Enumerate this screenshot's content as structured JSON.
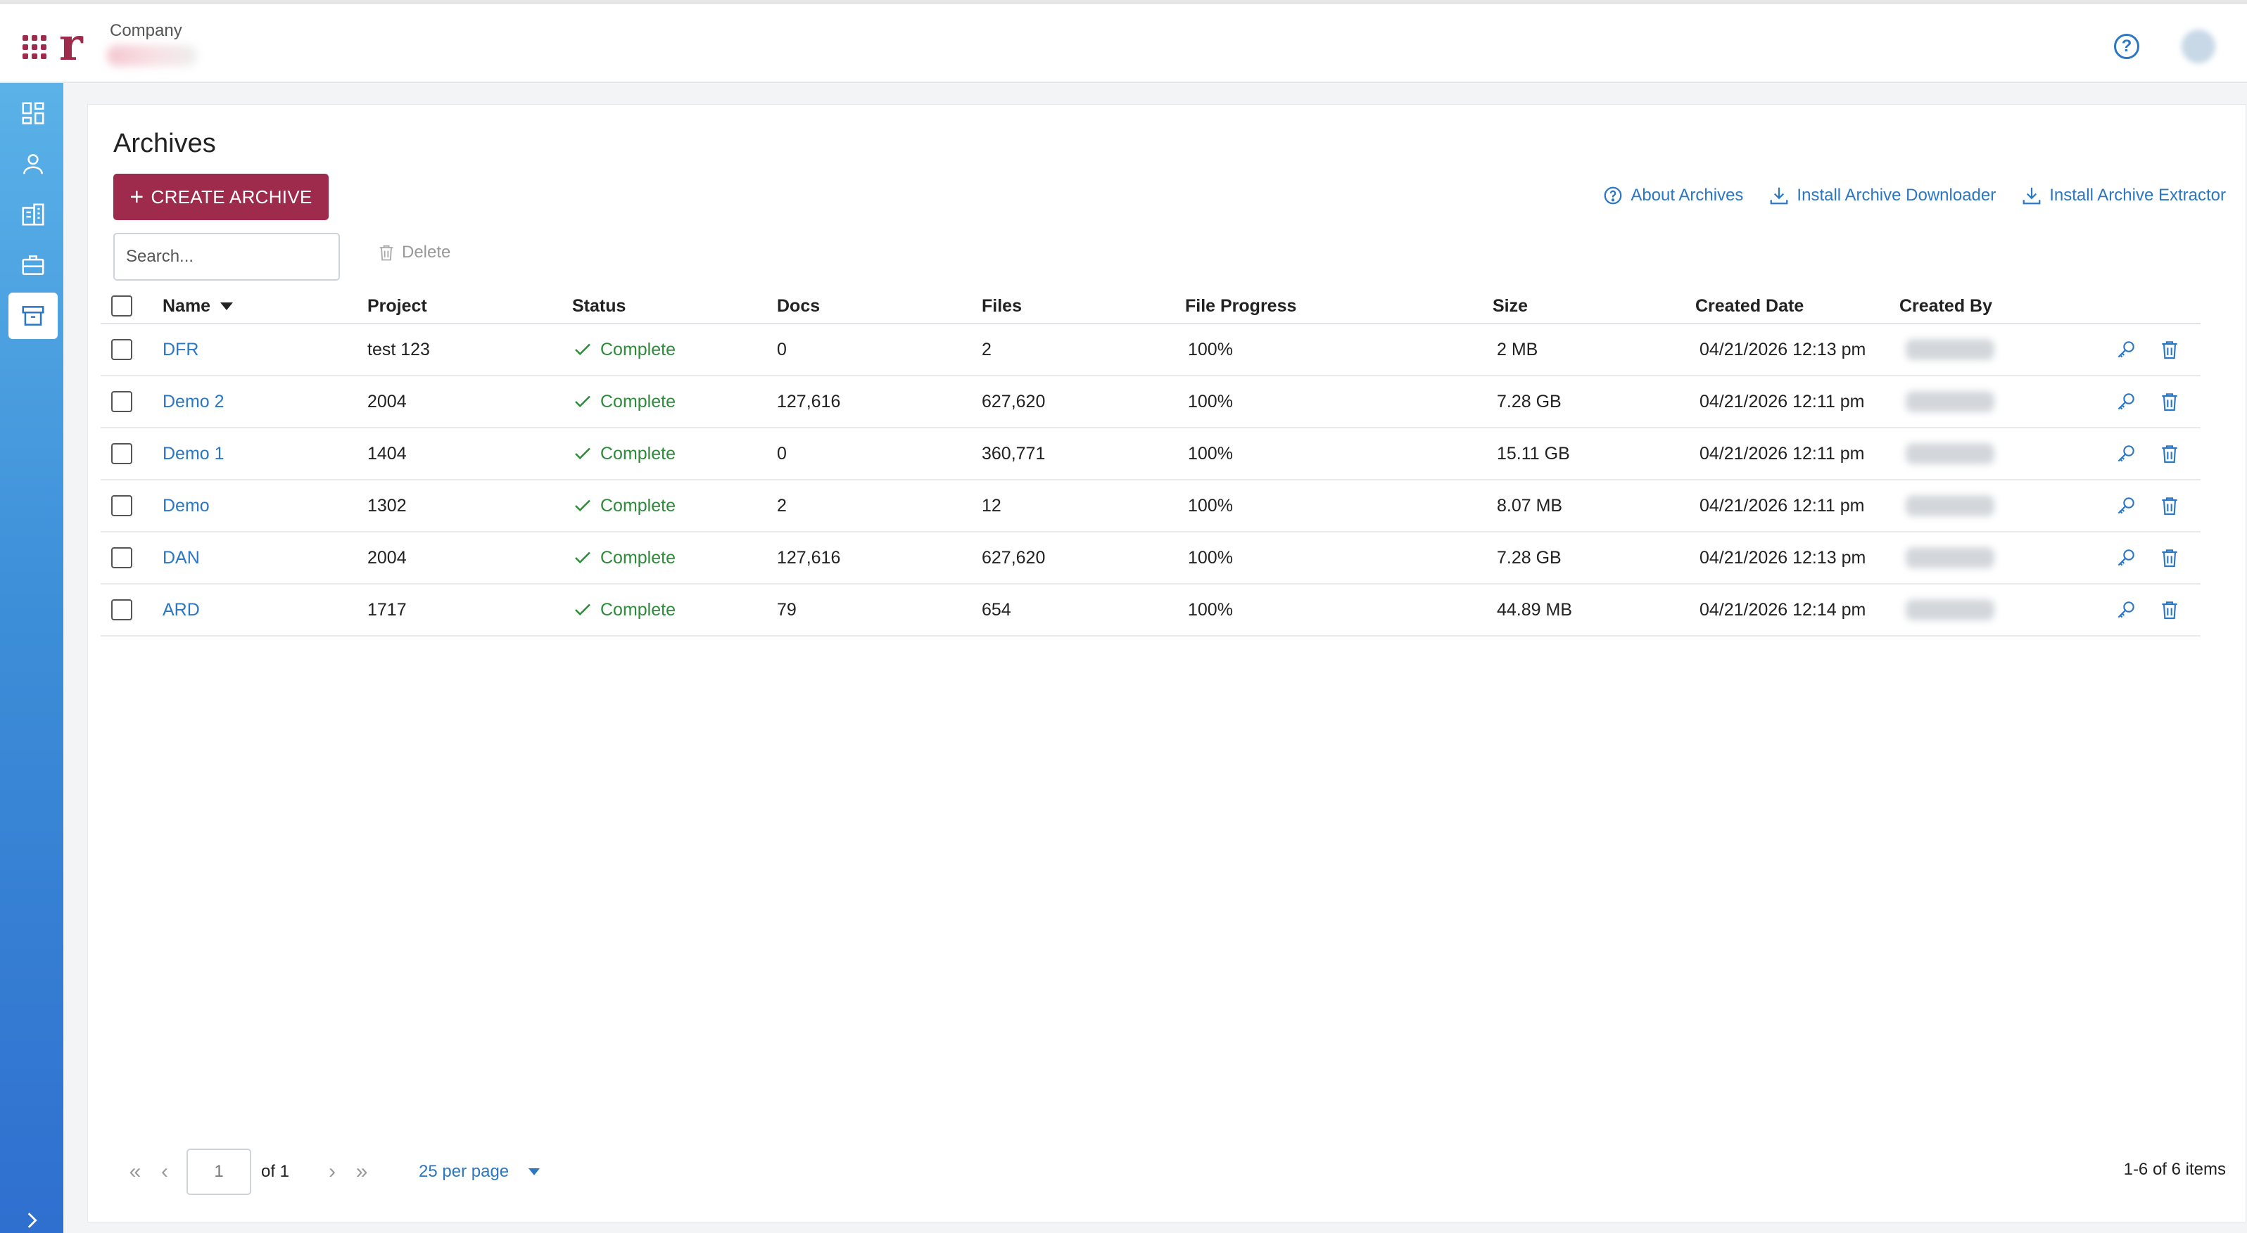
{
  "header": {
    "company_label": "Company",
    "logo_text": "r"
  },
  "sidebar": {
    "items": [
      {
        "icon": "dashboard-icon"
      },
      {
        "icon": "user-icon"
      },
      {
        "icon": "building-icon"
      },
      {
        "icon": "briefcase-icon"
      },
      {
        "icon": "archive-box-icon",
        "active": true
      }
    ]
  },
  "page": {
    "title": "Archives",
    "create_label": "CREATE ARCHIVE",
    "links": {
      "about": "About Archives",
      "downloader": "Install Archive Downloader",
      "extractor": "Install Archive Extractor"
    },
    "search_placeholder": "Search...",
    "delete_label": "Delete"
  },
  "table": {
    "columns": [
      "Name",
      "Project",
      "Status",
      "Docs",
      "Files",
      "File Progress",
      "Size",
      "Created Date",
      "Created By"
    ],
    "rows": [
      {
        "name": "DFR",
        "project": "test 123",
        "status": "Complete",
        "docs": "0",
        "files": "2",
        "progress": "100%",
        "size": "2 MB",
        "created": "04/21/2026 12:13 pm"
      },
      {
        "name": "Demo 2",
        "project": "2004",
        "status": "Complete",
        "docs": "127,616",
        "files": "627,620",
        "progress": "100%",
        "size": "7.28 GB",
        "created": "04/21/2026 12:11 pm"
      },
      {
        "name": "Demo 1",
        "project": "1404",
        "status": "Complete",
        "docs": "0",
        "files": "360,771",
        "progress": "100%",
        "size": "15.11 GB",
        "created": "04/21/2026 12:11 pm"
      },
      {
        "name": "Demo",
        "project": "1302",
        "status": "Complete",
        "docs": "2",
        "files": "12",
        "progress": "100%",
        "size": "8.07 MB",
        "created": "04/21/2026 12:11 pm"
      },
      {
        "name": "DAN",
        "project": "2004",
        "status": "Complete",
        "docs": "127,616",
        "files": "627,620",
        "progress": "100%",
        "size": "7.28 GB",
        "created": "04/21/2026 12:13 pm"
      },
      {
        "name": "ARD",
        "project": "1717",
        "status": "Complete",
        "docs": "79",
        "files": "654",
        "progress": "100%",
        "size": "44.89 MB",
        "created": "04/21/2026 12:14 pm"
      }
    ]
  },
  "pagination": {
    "page": "1",
    "of_label": "of 1",
    "per_page": "25 per page",
    "items_label": "1-6 of 6 items"
  },
  "colors": {
    "brand": "#9e2a4c",
    "link": "#2b77c4",
    "success": "#2e8b3a"
  }
}
